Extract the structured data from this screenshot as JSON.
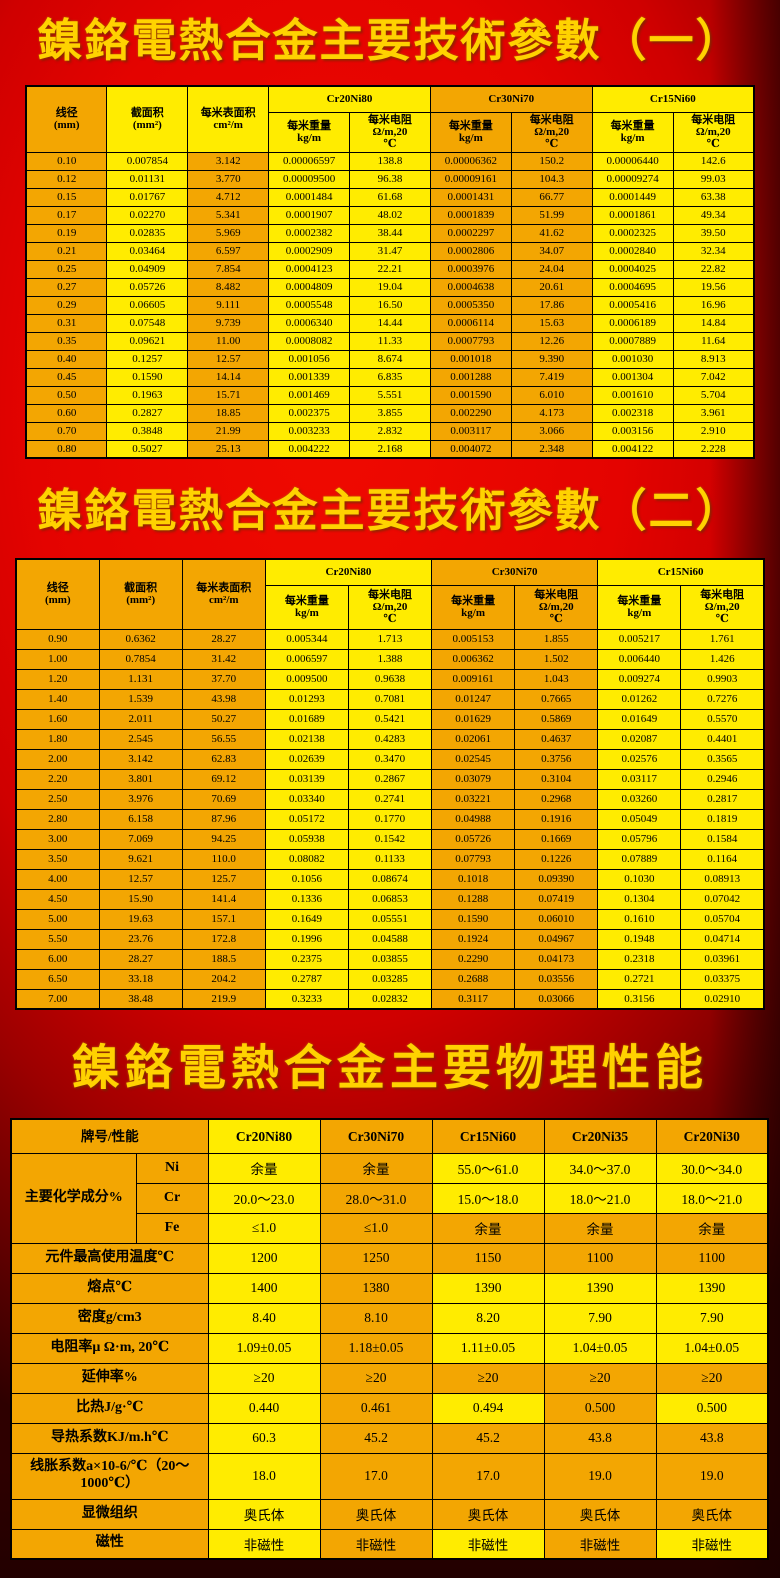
{
  "palette": {
    "background_red": "#e40300",
    "background_dark_edge": "#2e0000",
    "title_gold": "#ffd200",
    "cell_yellow": "#ffec00",
    "cell_orange": "#f3a602",
    "grid_black": "#000000"
  },
  "table1": {
    "title": "鎳鉻電熱合金主要技術參數（一）",
    "col_headers": [
      "线径\n(mm)",
      "截面积\n(mm²)",
      "每米表面积\ncm²/m"
    ],
    "groups": [
      "Cr20Ni80",
      "Cr30Ni70",
      "Cr15Ni60"
    ],
    "sub_headers": [
      "每米重量\nkg/m",
      "每米电阻\nΩ/m,20\n℃"
    ],
    "rows": [
      [
        "0.10",
        "0.007854",
        "3.142",
        "0.00006597",
        "138.8",
        "0.00006362",
        "150.2",
        "0.00006440",
        "142.6"
      ],
      [
        "0.12",
        "0.01131",
        "3.770",
        "0.00009500",
        "96.38",
        "0.00009161",
        "104.3",
        "0.00009274",
        "99.03"
      ],
      [
        "0.15",
        "0.01767",
        "4.712",
        "0.0001484",
        "61.68",
        "0.0001431",
        "66.77",
        "0.0001449",
        "63.38"
      ],
      [
        "0.17",
        "0.02270",
        "5.341",
        "0.0001907",
        "48.02",
        "0.0001839",
        "51.99",
        "0.0001861",
        "49.34"
      ],
      [
        "0.19",
        "0.02835",
        "5.969",
        "0.0002382",
        "38.44",
        "0.0002297",
        "41.62",
        "0.0002325",
        "39.50"
      ],
      [
        "0.21",
        "0.03464",
        "6.597",
        "0.0002909",
        "31.47",
        "0.0002806",
        "34.07",
        "0.0002840",
        "32.34"
      ],
      [
        "0.25",
        "0.04909",
        "7.854",
        "0.0004123",
        "22.21",
        "0.0003976",
        "24.04",
        "0.0004025",
        "22.82"
      ],
      [
        "0.27",
        "0.05726",
        "8.482",
        "0.0004809",
        "19.04",
        "0.0004638",
        "20.61",
        "0.0004695",
        "19.56"
      ],
      [
        "0.29",
        "0.06605",
        "9.111",
        "0.0005548",
        "16.50",
        "0.0005350",
        "17.86",
        "0.0005416",
        "16.96"
      ],
      [
        "0.31",
        "0.07548",
        "9.739",
        "0.0006340",
        "14.44",
        "0.0006114",
        "15.63",
        "0.0006189",
        "14.84"
      ],
      [
        "0.35",
        "0.09621",
        "11.00",
        "0.0008082",
        "11.33",
        "0.0007793",
        "12.26",
        "0.0007889",
        "11.64"
      ],
      [
        "0.40",
        "0.1257",
        "12.57",
        "0.001056",
        "8.674",
        "0.001018",
        "9.390",
        "0.001030",
        "8.913"
      ],
      [
        "0.45",
        "0.1590",
        "14.14",
        "0.001339",
        "6.835",
        "0.001288",
        "7.419",
        "0.001304",
        "7.042"
      ],
      [
        "0.50",
        "0.1963",
        "15.71",
        "0.001469",
        "5.551",
        "0.001590",
        "6.010",
        "0.001610",
        "5.704"
      ],
      [
        "0.60",
        "0.2827",
        "18.85",
        "0.002375",
        "3.855",
        "0.002290",
        "4.173",
        "0.002318",
        "3.961"
      ],
      [
        "0.70",
        "0.3848",
        "21.99",
        "0.003233",
        "2.832",
        "0.003117",
        "3.066",
        "0.003156",
        "2.910"
      ],
      [
        "0.80",
        "0.5027",
        "25.13",
        "0.004222",
        "2.168",
        "0.004072",
        "2.348",
        "0.004122",
        "2.228"
      ]
    ]
  },
  "table2": {
    "title": "鎳鉻電熱合金主要技術參數（二）",
    "col_headers": [
      "线径\n(mm)",
      "截面积\n(mm²)",
      "每米表面积\ncm²/m"
    ],
    "groups": [
      "Cr20Ni80",
      "Cr30Ni70",
      "Cr15Ni60"
    ],
    "sub_headers": [
      "每米重量\nkg/m",
      "每米电阻\nΩ/m,20\n℃"
    ],
    "rows": [
      [
        "0.90",
        "0.6362",
        "28.27",
        "0.005344",
        "1.713",
        "0.005153",
        "1.855",
        "0.005217",
        "1.761"
      ],
      [
        "1.00",
        "0.7854",
        "31.42",
        "0.006597",
        "1.388",
        "0.006362",
        "1.502",
        "0.006440",
        "1.426"
      ],
      [
        "1.20",
        "1.131",
        "37.70",
        "0.009500",
        "0.9638",
        "0.009161",
        "1.043",
        "0.009274",
        "0.9903"
      ],
      [
        "1.40",
        "1.539",
        "43.98",
        "0.01293",
        "0.7081",
        "0.01247",
        "0.7665",
        "0.01262",
        "0.7276"
      ],
      [
        "1.60",
        "2.011",
        "50.27",
        "0.01689",
        "0.5421",
        "0.01629",
        "0.5869",
        "0.01649",
        "0.5570"
      ],
      [
        "1.80",
        "2.545",
        "56.55",
        "0.02138",
        "0.4283",
        "0.02061",
        "0.4637",
        "0.02087",
        "0.4401"
      ],
      [
        "2.00",
        "3.142",
        "62.83",
        "0.02639",
        "0.3470",
        "0.02545",
        "0.3756",
        "0.02576",
        "0.3565"
      ],
      [
        "2.20",
        "3.801",
        "69.12",
        "0.03139",
        "0.2867",
        "0.03079",
        "0.3104",
        "0.03117",
        "0.2946"
      ],
      [
        "2.50",
        "3.976",
        "70.69",
        "0.03340",
        "0.2741",
        "0.03221",
        "0.2968",
        "0.03260",
        "0.2817"
      ],
      [
        "2.80",
        "6.158",
        "87.96",
        "0.05172",
        "0.1770",
        "0.04988",
        "0.1916",
        "0.05049",
        "0.1819"
      ],
      [
        "3.00",
        "7.069",
        "94.25",
        "0.05938",
        "0.1542",
        "0.05726",
        "0.1669",
        "0.05796",
        "0.1584"
      ],
      [
        "3.50",
        "9.621",
        "110.0",
        "0.08082",
        "0.1133",
        "0.07793",
        "0.1226",
        "0.07889",
        "0.1164"
      ],
      [
        "4.00",
        "12.57",
        "125.7",
        "0.1056",
        "0.08674",
        "0.1018",
        "0.09390",
        "0.1030",
        "0.08913"
      ],
      [
        "4.50",
        "15.90",
        "141.4",
        "0.1336",
        "0.06853",
        "0.1288",
        "0.07419",
        "0.1304",
        "0.07042"
      ],
      [
        "5.00",
        "19.63",
        "157.1",
        "0.1649",
        "0.05551",
        "0.1590",
        "0.06010",
        "0.1610",
        "0.05704"
      ],
      [
        "5.50",
        "23.76",
        "172.8",
        "0.1996",
        "0.04588",
        "0.1924",
        "0.04967",
        "0.1948",
        "0.04714"
      ],
      [
        "6.00",
        "28.27",
        "188.5",
        "0.2375",
        "0.03855",
        "0.2290",
        "0.04173",
        "0.2318",
        "0.03961"
      ],
      [
        "6.50",
        "33.18",
        "204.2",
        "0.2787",
        "0.03285",
        "0.2688",
        "0.03556",
        "0.2721",
        "0.03375"
      ],
      [
        "7.00",
        "38.48",
        "219.9",
        "0.3233",
        "0.02832",
        "0.3117",
        "0.03066",
        "0.3156",
        "0.02910"
      ]
    ]
  },
  "table3": {
    "title": "鎳鉻電熱合金主要物理性能",
    "corner": "牌号/性能",
    "brands": [
      "Cr20Ni80",
      "Cr30Ni70",
      "Cr15Ni60",
      "Cr20Ni35",
      "Cr20Ni30"
    ],
    "chem_group_label": "主要化学成分%",
    "rows": [
      {
        "label": "Ni",
        "chem": true,
        "values": [
          "余量",
          "余量",
          "55.0～61.0",
          "34.0～37.0",
          "30.0～34.0"
        ]
      },
      {
        "label": "Cr",
        "chem": true,
        "values": [
          "20.0～23.0",
          "28.0～31.0",
          "15.0～18.0",
          "18.0～21.0",
          "18.0～21.0"
        ]
      },
      {
        "label": "Fe",
        "chem": true,
        "values": [
          "≤1.0",
          "≤1.0",
          "余量",
          "余量",
          "余量"
        ]
      },
      {
        "label": "元件最高使用温度℃",
        "values": [
          "1200",
          "1250",
          "1150",
          "1100",
          "1100"
        ]
      },
      {
        "label": "熔点℃",
        "values": [
          "1400",
          "1380",
          "1390",
          "1390",
          "1390"
        ]
      },
      {
        "label": "密度g/cm3",
        "values": [
          "8.40",
          "8.10",
          "8.20",
          "7.90",
          "7.90"
        ]
      },
      {
        "label": "电阻率μ Ω·m, 20℃",
        "values": [
          "1.09±0.05",
          "1.18±0.05",
          "1.11±0.05",
          "1.04±0.05",
          "1.04±0.05"
        ]
      },
      {
        "label": "延伸率%",
        "values": [
          "≥20",
          "≥20",
          "≥20",
          "≥20",
          "≥20"
        ]
      },
      {
        "label": "比热J/g·℃",
        "values": [
          "0.440",
          "0.461",
          "0.494",
          "0.500",
          "0.500"
        ]
      },
      {
        "label": "导热系数KJ/m.h℃",
        "values": [
          "60.3",
          "45.2",
          "45.2",
          "43.8",
          "43.8"
        ]
      },
      {
        "label": "线胀系数a×10-6/℃（20～1000℃）",
        "values": [
          "18.0",
          "17.0",
          "17.0",
          "19.0",
          "19.0"
        ]
      },
      {
        "label": "显微组织",
        "values": [
          "奥氏体",
          "奥氏体",
          "奥氏体",
          "奥氏体",
          "奥氏体"
        ]
      },
      {
        "label": "磁性",
        "values": [
          "非磁性",
          "非磁性",
          "非磁性",
          "非磁性",
          "非磁性"
        ]
      }
    ]
  }
}
